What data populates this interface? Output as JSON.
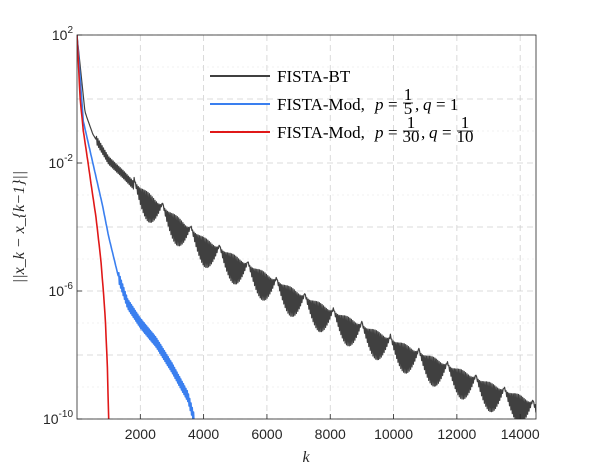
{
  "chart_data": {
    "type": "line",
    "xlabel": "k",
    "ylabel": "||x_k − x_{k−1}||",
    "x_ticks": [
      "2000",
      "4000",
      "6000",
      "8000",
      "10000",
      "12000",
      "14000"
    ],
    "y_ticks": [
      {
        "base": "10",
        "exp": "2"
      },
      {
        "base": "10",
        "exp": "-2"
      },
      {
        "base": "10",
        "exp": "-6"
      },
      {
        "base": "10",
        "exp": "-10"
      }
    ],
    "xlim": [
      0,
      14500
    ],
    "ylim": [
      1e-10,
      100
    ],
    "yscale": "log",
    "grid": true,
    "legend_position": "top-right",
    "series": [
      {
        "name": "FISTA-BT",
        "color": "#404040",
        "points": [
          [
            0,
            100
          ],
          [
            250,
            0.4
          ],
          [
            500,
            0.08
          ],
          [
            1000,
            0.012
          ],
          [
            1500,
            0.004
          ],
          [
            2000,
            0.0012
          ],
          [
            3000,
            0.00018
          ],
          [
            4000,
            3e-05
          ],
          [
            5000,
            8e-06
          ],
          [
            6000,
            2.2e-06
          ],
          [
            7000,
            6e-07
          ],
          [
            8000,
            1.8e-07
          ],
          [
            9000,
            6e-08
          ],
          [
            10000,
            2e-08
          ],
          [
            11000,
            7e-09
          ],
          [
            12000,
            2.5e-09
          ],
          [
            13000,
            9e-10
          ],
          [
            14000,
            3.5e-10
          ],
          [
            14500,
            2e-10
          ]
        ],
        "oscillation": {
          "period": 900,
          "amplitude_decades": 1.0
        }
      },
      {
        "name": "FISTA-Mod",
        "legend_params": "p = 1/5, q = 1",
        "color": "#3a7fef",
        "points": [
          [
            0,
            100
          ],
          [
            200,
            0.2
          ],
          [
            500,
            0.01
          ],
          [
            800,
            0.0005
          ],
          [
            1000,
            5e-05
          ],
          [
            1300,
            3e-06
          ],
          [
            1600,
            4e-07
          ],
          [
            2000,
            1e-07
          ],
          [
            2500,
            2.5e-08
          ],
          [
            3000,
            4e-09
          ],
          [
            3500,
            5e-10
          ],
          [
            3700,
            1e-10
          ]
        ]
      },
      {
        "name": "FISTA-Mod",
        "legend_params": "p = 1/30, q = 1/10",
        "color": "#e01818",
        "points": [
          [
            0,
            100
          ],
          [
            100,
            1
          ],
          [
            200,
            0.1
          ],
          [
            350,
            0.01
          ],
          [
            450,
            0.002
          ],
          [
            600,
            0.0002
          ],
          [
            750,
            1e-05
          ],
          [
            850,
            6e-07
          ],
          [
            900,
            1e-07
          ],
          [
            960,
            4e-09
          ],
          [
            1000,
            1e-10
          ]
        ]
      }
    ]
  },
  "legend": {
    "item1": {
      "label": "FISTA-BT"
    },
    "item2": {
      "label": "FISTA-Mod,",
      "p_var": "p",
      "eq": "=",
      "p_num": "1",
      "p_den": "5",
      "comma": ",",
      "q_var": "q",
      "q_val": "= 1"
    },
    "item3": {
      "label": "FISTA-Mod,",
      "p_var": "p",
      "eq": "=",
      "p_num": "1",
      "p_den": "30",
      "comma": ",",
      "q_var": "q",
      "q_eq": "=",
      "q_num": "1",
      "q_den": "10"
    }
  }
}
